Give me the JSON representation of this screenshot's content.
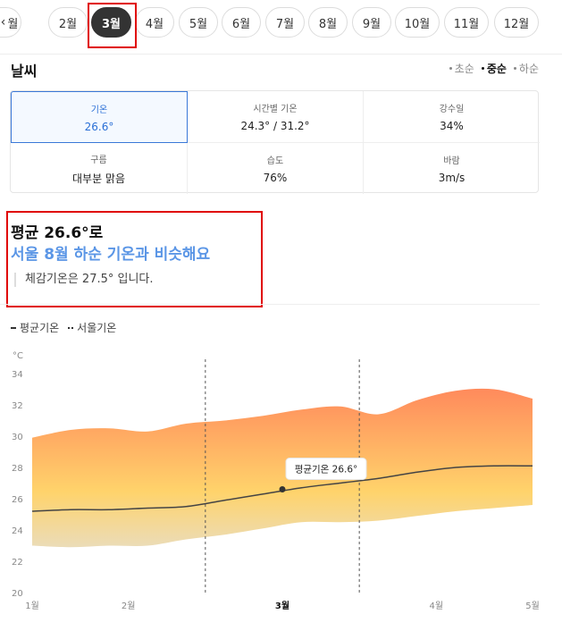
{
  "months": {
    "back_label": "월",
    "items": [
      "2월",
      "3월",
      "4월",
      "5월",
      "6월",
      "7월",
      "8월",
      "9월",
      "10월",
      "11월",
      "12월"
    ],
    "selected": "3월"
  },
  "weather": {
    "title": "날씨",
    "periods": [
      "초순",
      "중순",
      "하순"
    ],
    "active_period": "중순",
    "cells": [
      {
        "label": "기온",
        "value": "26.6°"
      },
      {
        "label": "시간별 기온",
        "value": "24.3° / 31.2°"
      },
      {
        "label": "강수일",
        "value": "34%"
      },
      {
        "label": "구름",
        "value": "대부분 맑음"
      },
      {
        "label": "습도",
        "value": "76%"
      },
      {
        "label": "바람",
        "value": "3m/s"
      }
    ]
  },
  "summary": {
    "line1": "평균 26.6°로",
    "line2": "서울 8월 하순 기온과 비슷해요",
    "line3": "체감기온은 27.5° 입니다."
  },
  "legend": {
    "avg": "평균기온",
    "seoul": "서울기온"
  },
  "colors": {
    "selected_blue": "#2a6fd6",
    "highlight_red": "#e00000",
    "band_top": "#ff8a5c",
    "band_bottom": "#ffd36b",
    "avg_line": "#444444"
  },
  "chart_data": {
    "type": "area",
    "unit": "°C",
    "yticks": [
      20,
      22,
      24,
      26,
      28,
      30,
      32,
      34
    ],
    "ylim": [
      20,
      34
    ],
    "x_labels": [
      {
        "label": "1월",
        "x": 0,
        "bold": false
      },
      {
        "label": "2월",
        "x": 1,
        "bold": false
      },
      {
        "label": "3월",
        "x": 2.6,
        "bold": true
      },
      {
        "label": "4월",
        "x": 4.2,
        "bold": false
      },
      {
        "label": "5월",
        "x": 5.2,
        "bold": false
      }
    ],
    "xlim": [
      0,
      5.2
    ],
    "range_markers": [
      1.8,
      3.4
    ],
    "x": [
      0,
      0.4,
      0.8,
      1.2,
      1.6,
      2.0,
      2.4,
      2.8,
      3.2,
      3.6,
      4.0,
      4.4,
      4.8,
      5.2
    ],
    "high": [
      29.9,
      30.4,
      30.5,
      30.3,
      30.8,
      31.0,
      31.3,
      31.7,
      31.9,
      31.4,
      32.3,
      32.9,
      33.0,
      32.4
    ],
    "low": [
      23.0,
      22.9,
      23.0,
      23.0,
      23.4,
      23.7,
      24.1,
      24.5,
      24.5,
      24.6,
      24.9,
      25.2,
      25.4,
      25.6
    ],
    "avg": [
      25.2,
      25.3,
      25.3,
      25.4,
      25.5,
      25.9,
      26.3,
      26.7,
      27.0,
      27.3,
      27.7,
      28.0,
      28.1,
      28.1
    ],
    "callout": {
      "label": "평균기온 26.6°",
      "x": 2.6,
      "y": 26.6
    }
  }
}
